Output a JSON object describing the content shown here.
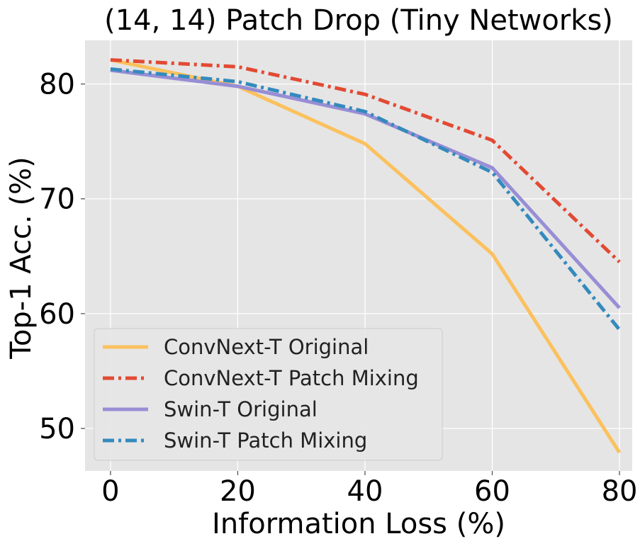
{
  "chart_data": {
    "type": "line",
    "title": "(14, 14) Patch Drop (Tiny Networks)",
    "xlabel": "Information Loss (%)",
    "ylabel": "Top-1 Acc. (%)",
    "x": [
      0,
      20,
      40,
      60,
      80
    ],
    "xticks": [
      "0",
      "20",
      "40",
      "60",
      "80"
    ],
    "yticks": [
      "50",
      "60",
      "70",
      "80"
    ],
    "xlim": [
      -4,
      82
    ],
    "ylim": [
      46.3,
      83.8
    ],
    "grid": true,
    "legend_position": "lower-left",
    "series": [
      {
        "name": "ConvNext-T Original",
        "values": [
          82.1,
          79.8,
          74.8,
          65.2,
          47.9
        ],
        "color": "#fbc15e",
        "dash": "solid"
      },
      {
        "name": "ConvNext-T Patch Mixing",
        "values": [
          82.1,
          81.5,
          79.1,
          75.1,
          64.5
        ],
        "color": "#e24a33",
        "dash": "dashdot"
      },
      {
        "name": "Swin-T Original",
        "values": [
          81.2,
          79.8,
          77.4,
          72.7,
          60.5
        ],
        "color": "#988ed5",
        "dash": "solid"
      },
      {
        "name": "Swin-T Patch Mixing",
        "values": [
          81.3,
          80.2,
          77.6,
          72.3,
          58.6
        ],
        "color": "#348abd",
        "dash": "dashdot"
      }
    ]
  }
}
